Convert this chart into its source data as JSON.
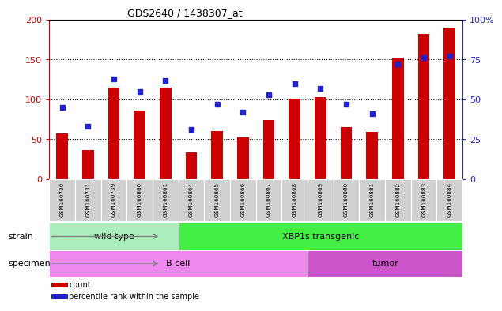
{
  "title": "GDS2640 / 1438307_at",
  "samples": [
    "GSM160730",
    "GSM160731",
    "GSM160739",
    "GSM160860",
    "GSM160861",
    "GSM160864",
    "GSM160865",
    "GSM160866",
    "GSM160867",
    "GSM160868",
    "GSM160869",
    "GSM160880",
    "GSM160881",
    "GSM160882",
    "GSM160883",
    "GSM160884"
  ],
  "counts": [
    57,
    36,
    115,
    86,
    115,
    33,
    60,
    52,
    74,
    101,
    103,
    65,
    59,
    152,
    182,
    190
  ],
  "percentiles": [
    45,
    33,
    63,
    55,
    62,
    31,
    47,
    42,
    53,
    60,
    57,
    47,
    41,
    72,
    76,
    77
  ],
  "bar_color": "#cc0000",
  "dot_color": "#2222cc",
  "left_yaxis_color": "#cc0000",
  "right_yaxis_color": "#2222cc",
  "left_ylim": [
    0,
    200
  ],
  "right_ylim": [
    0,
    100
  ],
  "left_yticks": [
    0,
    50,
    100,
    150,
    200
  ],
  "right_yticks": [
    0,
    25,
    50,
    75,
    100
  ],
  "right_yticklabels": [
    "0",
    "25",
    "50",
    "75",
    "100%"
  ],
  "strain_groups": [
    {
      "label": "wild type",
      "start": 0,
      "end": 5,
      "color": "#aaeebb"
    },
    {
      "label": "XBP1s transgenic",
      "start": 5,
      "end": 16,
      "color": "#44ee44"
    }
  ],
  "specimen_groups": [
    {
      "label": "B cell",
      "start": 0,
      "end": 10,
      "color": "#ee88ee"
    },
    {
      "label": "tumor",
      "start": 10,
      "end": 16,
      "color": "#cc55cc"
    }
  ],
  "legend_count_label": "count",
  "legend_pct_label": "percentile rank within the sample",
  "xlabel_strain": "strain",
  "xlabel_specimen": "specimen",
  "bg_color": "#ffffff",
  "ticklabel_bg": "#d0d0d0",
  "ticklabel_edgecolor": "#aaaaaa"
}
